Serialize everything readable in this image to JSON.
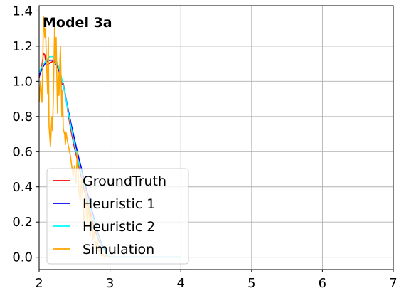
{
  "chart_data": {
    "type": "line",
    "title": "Model 3a",
    "xlabel": "",
    "ylabel": "",
    "xlim": [
      2,
      7
    ],
    "ylim": [
      -0.07,
      1.43
    ],
    "xticks": [
      2,
      3,
      4,
      5,
      6,
      7
    ],
    "yticks": [
      0.0,
      0.2,
      0.4,
      0.6,
      0.8,
      1.0,
      1.2,
      1.4
    ],
    "xtick_labels": [
      "2",
      "3",
      "4",
      "5",
      "6",
      "7"
    ],
    "ytick_labels": [
      "0.0",
      "0.2",
      "0.4",
      "0.6",
      "0.8",
      "1.0",
      "1.2",
      "1.4"
    ],
    "grid": true,
    "legend_position": "lower-left",
    "series": [
      {
        "name": "GroundTruth",
        "color": "#ff0000",
        "x": [
          2.0,
          2.04,
          2.06,
          2.08,
          2.1,
          2.14,
          2.18,
          2.22,
          2.26,
          2.28,
          2.3,
          2.32,
          2.34,
          2.38,
          2.42,
          2.46,
          2.5,
          2.56,
          2.62,
          2.68,
          2.74,
          2.8,
          2.86,
          2.92,
          2.96,
          3.0,
          3.5,
          4.0
        ],
        "y": [
          1.02,
          1.09,
          1.16,
          1.15,
          1.09,
          1.1,
          1.11,
          1.12,
          1.1,
          1.07,
          1.02,
          0.98,
          0.99,
          0.9,
          0.79,
          0.7,
          0.62,
          0.52,
          0.41,
          0.32,
          0.22,
          0.14,
          0.08,
          0.04,
          0.01,
          0.0,
          0.0,
          0.0
        ]
      },
      {
        "name": "Heuristic 1",
        "color": "#0000ff",
        "x": [
          2.0,
          2.05,
          2.1,
          2.15,
          2.2,
          2.25,
          2.3,
          2.35,
          2.4,
          2.45,
          2.5,
          2.55,
          2.6,
          2.65,
          2.7,
          2.75,
          2.8,
          2.85,
          2.9,
          2.95,
          3.0,
          3.5,
          4.0
        ],
        "y": [
          1.03,
          1.08,
          1.11,
          1.12,
          1.12,
          1.09,
          1.04,
          0.96,
          0.86,
          0.76,
          0.67,
          0.58,
          0.5,
          0.41,
          0.34,
          0.26,
          0.18,
          0.11,
          0.06,
          0.02,
          0.0,
          0.0,
          0.0
        ]
      },
      {
        "name": "Heuristic 2",
        "color": "#00ffff",
        "x": [
          2.0,
          2.05,
          2.1,
          2.15,
          2.2,
          2.25,
          2.3,
          2.35,
          2.4,
          2.45,
          2.5,
          2.55,
          2.6,
          2.65,
          2.7,
          2.75,
          2.8,
          2.85,
          2.9,
          2.95,
          3.0,
          3.5,
          4.0
        ],
        "y": [
          1.05,
          1.09,
          1.12,
          1.14,
          1.14,
          1.11,
          1.05,
          0.96,
          0.85,
          0.74,
          0.64,
          0.55,
          0.47,
          0.38,
          0.31,
          0.24,
          0.17,
          0.1,
          0.05,
          0.02,
          0.0,
          0.0,
          0.0
        ]
      },
      {
        "name": "Simulation",
        "color": "#ffa500",
        "x": [
          2.0,
          2.02,
          2.04,
          2.05,
          2.06,
          2.08,
          2.09,
          2.1,
          2.12,
          2.13,
          2.14,
          2.16,
          2.18,
          2.19,
          2.2,
          2.22,
          2.23,
          2.24,
          2.26,
          2.27,
          2.28,
          2.3,
          2.32,
          2.33,
          2.34,
          2.36,
          2.37,
          2.38,
          2.4,
          2.42,
          2.44,
          2.46,
          2.48,
          2.5,
          2.52,
          2.54,
          2.56,
          2.58,
          2.6,
          2.62,
          2.64,
          2.66,
          2.68,
          2.7,
          2.72,
          2.74,
          2.76,
          2.78,
          2.8,
          2.82,
          2.84,
          2.86,
          2.88,
          2.9,
          2.92,
          2.95,
          3.0
        ],
        "y": [
          0.88,
          1.0,
          0.88,
          1.05,
          1.37,
          1.25,
          1.3,
          1.15,
          0.93,
          1.25,
          0.75,
          0.63,
          0.8,
          0.72,
          0.9,
          1.33,
          1.1,
          1.25,
          0.82,
          1.05,
          0.92,
          1.2,
          0.8,
          0.95,
          0.73,
          0.7,
          0.64,
          0.71,
          0.66,
          0.62,
          0.58,
          0.52,
          0.46,
          0.52,
          0.42,
          0.6,
          0.38,
          0.32,
          0.45,
          0.3,
          0.15,
          0.38,
          0.2,
          0.3,
          0.12,
          0.25,
          0.1,
          0.15,
          0.05,
          0.1,
          0.03,
          0.05,
          0.01,
          0.02,
          0.0,
          0.01,
          0.0
        ]
      }
    ]
  }
}
